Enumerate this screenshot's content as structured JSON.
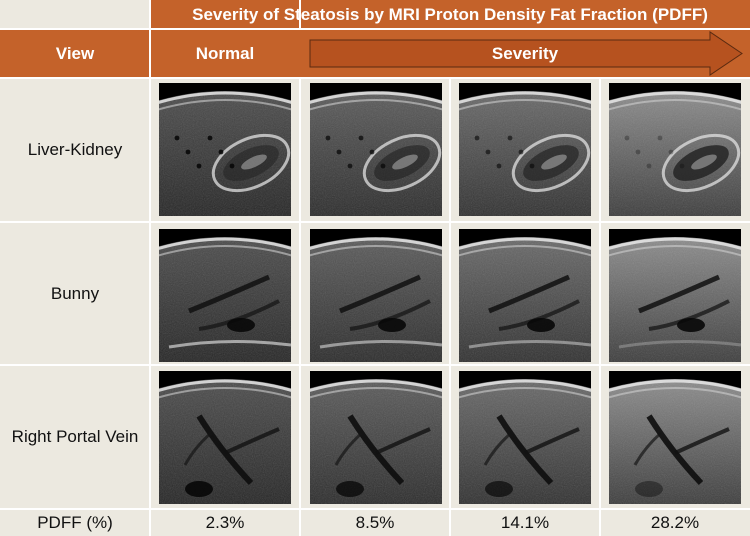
{
  "title": "Severity of Steatosis by MRI Proton Density Fat Fraction (PDFF)",
  "header": {
    "view": "View",
    "normal": "Normal",
    "severity": "Severity"
  },
  "rows": [
    {
      "label": "Liver-Kidney",
      "view": "liver-kidney"
    },
    {
      "label": "Bunny",
      "view": "bunny"
    },
    {
      "label": "Right Portal Vein",
      "view": "portal"
    }
  ],
  "pdff": {
    "label": "PDFF (%)",
    "values": [
      "2.3%",
      "8.5%",
      "14.1%",
      "28.2%"
    ],
    "numeric": [
      2.3,
      8.5,
      14.1,
      28.2
    ]
  },
  "colors": {
    "header": "#c4622a",
    "header_dark": "#9a4a1d",
    "band": "#ece9e0",
    "arrow": "#b6521f"
  }
}
